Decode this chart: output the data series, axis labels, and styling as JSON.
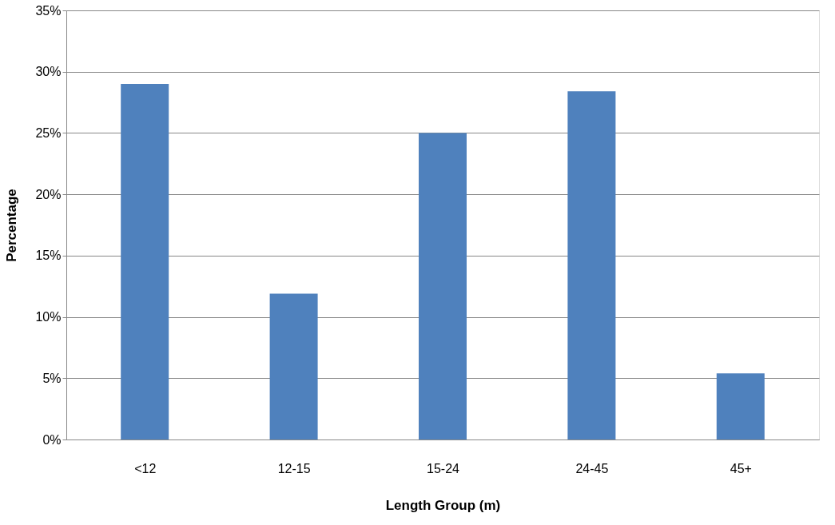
{
  "chart_data": {
    "type": "bar",
    "xlabel": "Length Group (m)",
    "ylabel": "Percentage",
    "categories": [
      "<12",
      "12-15",
      "15-24",
      "24-45",
      "45+"
    ],
    "values": [
      29.0,
      11.9,
      25.0,
      28.4,
      5.4
    ],
    "color": "#4f81bd",
    "ylim": [
      0,
      35
    ],
    "yticks": [
      {
        "value": 0,
        "label": "0%"
      },
      {
        "value": 5,
        "label": "5%"
      },
      {
        "value": 10,
        "label": "10%"
      },
      {
        "value": 15,
        "label": "15%"
      },
      {
        "value": 20,
        "label": "20%"
      },
      {
        "value": 25,
        "label": "25%"
      },
      {
        "value": 30,
        "label": "30%"
      },
      {
        "value": 35,
        "label": "35%"
      }
    ],
    "grid": "y"
  }
}
